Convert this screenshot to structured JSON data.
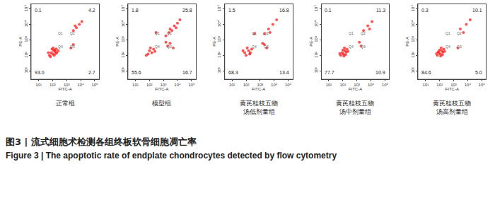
{
  "chart_data": [
    {
      "type": "scatter",
      "title": [
        "正常组"
      ],
      "x_label": "FITC-A",
      "y_label": "PE-A",
      "log": true,
      "grid": false,
      "color": "#ff1a1a",
      "xlim": [
        3,
        200000
      ],
      "ylim": [
        3,
        200000
      ],
      "xticks": [
        {
          "value": 10,
          "label": "10¹"
        },
        {
          "value": 100,
          "label": "10²"
        },
        {
          "value": 1000,
          "label": "10³"
        },
        {
          "value": 10000,
          "label": "10⁴"
        },
        {
          "value": 100000,
          "label": "10⁵"
        }
      ],
      "yticks": [
        {
          "value": 10,
          "label": "10¹"
        },
        {
          "value": 100,
          "label": "10²"
        },
        {
          "value": 1000,
          "label": "10³"
        },
        {
          "value": 10000,
          "label": "10⁴"
        },
        {
          "value": 100000,
          "label": "10⁵"
        }
      ],
      "gates": {
        "x": 1000,
        "y": 1000
      },
      "quadrants": {
        "names": [
          "Q1",
          "Q2",
          "Q3",
          "Q4"
        ],
        "values": [
          0.1,
          4.2,
          2.7,
          93.0
        ],
        "value_labels": [
          "0.1",
          "4.2",
          "2.7",
          "93.0"
        ]
      },
      "points": {
        "x": [
          60,
          80,
          100,
          120,
          150,
          90,
          200,
          70,
          130,
          110,
          180,
          250,
          50,
          160,
          140,
          3000,
          5000,
          8000,
          4000,
          12000,
          2000,
          3000
        ],
        "y": [
          100,
          150,
          120,
          200,
          180,
          250,
          150,
          80,
          100,
          300,
          260,
          200,
          150,
          130,
          220,
          4000,
          6000,
          10000,
          8000,
          15000,
          300,
          500
        ]
      }
    },
    {
      "type": "scatter",
      "title": [
        "模型组"
      ],
      "x_label": "FITC-A",
      "y_label": "PE-A",
      "log": true,
      "grid": false,
      "color": "#ff1a1a",
      "xlim": [
        3,
        200000
      ],
      "ylim": [
        3,
        200000
      ],
      "xticks": [
        {
          "value": 10,
          "label": "10¹"
        },
        {
          "value": 100,
          "label": "10²"
        },
        {
          "value": 1000,
          "label": "10³"
        },
        {
          "value": 10000,
          "label": "10⁴"
        },
        {
          "value": 100000,
          "label": "10⁵"
        }
      ],
      "yticks": [
        {
          "value": 10,
          "label": "10¹"
        },
        {
          "value": 100,
          "label": "10²"
        },
        {
          "value": 1000,
          "label": "10³"
        },
        {
          "value": 10000,
          "label": "10⁴"
        },
        {
          "value": 100000,
          "label": "10⁵"
        }
      ],
      "gates": {
        "x": 1000,
        "y": 1000
      },
      "quadrants": {
        "names": [
          "Q1",
          "Q2",
          "Q3",
          "Q4"
        ],
        "values": [
          1.8,
          25.8,
          16.7,
          55.6
        ],
        "value_labels": [
          "1.8",
          "25.8",
          "16.7",
          "55.6"
        ]
      },
      "points": {
        "x": [
          80,
          100,
          150,
          120,
          200,
          60,
          250,
          1500,
          2500,
          4000,
          6000,
          10000,
          15000,
          3000,
          8000,
          2000,
          3000,
          5000,
          1500,
          300
        ],
        "y": [
          120,
          200,
          150,
          300,
          250,
          100,
          180,
          1800,
          3000,
          4000,
          8000,
          12000,
          20000,
          5000,
          6000,
          400,
          600,
          300,
          700,
          3000
        ]
      }
    },
    {
      "type": "scatter",
      "title": [
        "黄芪桂枝五物",
        "汤低剂量组"
      ],
      "x_label": "FITC-A",
      "y_label": "PE-A",
      "log": true,
      "grid": false,
      "color": "#ff1a1a",
      "xlim": [
        3,
        200000
      ],
      "ylim": [
        3,
        200000
      ],
      "xticks": [
        {
          "value": 10,
          "label": "10¹"
        },
        {
          "value": 100,
          "label": "10²"
        },
        {
          "value": 1000,
          "label": "10³"
        },
        {
          "value": 10000,
          "label": "10⁴"
        },
        {
          "value": 100000,
          "label": "10⁵"
        }
      ],
      "yticks": [
        {
          "value": 10,
          "label": "10¹"
        },
        {
          "value": 100,
          "label": "10²"
        },
        {
          "value": 1000,
          "label": "10³"
        },
        {
          "value": 10000,
          "label": "10⁴"
        },
        {
          "value": 100000,
          "label": "10⁵"
        }
      ],
      "gates": {
        "x": 1000,
        "y": 1000
      },
      "quadrants": {
        "names": [
          "Q1",
          "Q2",
          "Q3",
          "Q4"
        ],
        "values": [
          1.5,
          16.8,
          13.4,
          68.3
        ],
        "value_labels": [
          "1.5",
          "16.8",
          "13.4",
          "68.3"
        ]
      },
      "points": {
        "x": [
          80,
          100,
          150,
          120,
          200,
          60,
          250,
          180,
          2000,
          4000,
          8000,
          15000,
          5000,
          2000,
          3000,
          1500,
          400
        ],
        "y": [
          150,
          100,
          200,
          300,
          150,
          200,
          250,
          120,
          2500,
          5000,
          10000,
          20000,
          3000,
          500,
          300,
          600,
          2500
        ]
      }
    },
    {
      "type": "scatter",
      "title": [
        "黄芪桂枝五物",
        "汤中剂量组"
      ],
      "x_label": "FITC-A",
      "y_label": "PE-A",
      "log": true,
      "grid": false,
      "color": "#ff1a1a",
      "xlim": [
        3,
        200000
      ],
      "ylim": [
        3,
        200000
      ],
      "xticks": [
        {
          "value": 10,
          "label": "10¹"
        },
        {
          "value": 100,
          "label": "10²"
        },
        {
          "value": 1000,
          "label": "10³"
        },
        {
          "value": 10000,
          "label": "10⁴"
        },
        {
          "value": 100000,
          "label": "10⁵"
        }
      ],
      "yticks": [
        {
          "value": 10,
          "label": "10¹"
        },
        {
          "value": 100,
          "label": "10²"
        },
        {
          "value": 1000,
          "label": "10³"
        },
        {
          "value": 10000,
          "label": "10⁴"
        },
        {
          "value": 100000,
          "label": "10⁵"
        }
      ],
      "gates": {
        "x": 1000,
        "y": 1000
      },
      "quadrants": {
        "names": [
          "Q1",
          "Q2",
          "Q3",
          "Q4"
        ],
        "values": [
          0.1,
          11.3,
          10.9,
          77.7
        ],
        "value_labels": [
          "0.1",
          "11.3",
          "10.9",
          "77.7"
        ]
      },
      "points": {
        "x": [
          70,
          90,
          110,
          140,
          170,
          200,
          60,
          130,
          100,
          160,
          230,
          120,
          3000,
          6000,
          12000,
          8000,
          2000,
          1500
        ],
        "y": [
          100,
          150,
          120,
          200,
          160,
          250,
          130,
          300,
          220,
          110,
          180,
          90,
          4000,
          8000,
          15000,
          5000,
          400,
          700
        ]
      }
    },
    {
      "type": "scatter",
      "title": [
        "黄芪桂枝五物",
        "汤高剂量组"
      ],
      "x_label": "FITC-A",
      "y_label": "PE-A",
      "log": true,
      "grid": false,
      "color": "#ff1a1a",
      "xlim": [
        3,
        200000
      ],
      "ylim": [
        3,
        200000
      ],
      "xticks": [
        {
          "value": 10,
          "label": "10¹"
        },
        {
          "value": 100,
          "label": "10²"
        },
        {
          "value": 1000,
          "label": "10³"
        },
        {
          "value": 10000,
          "label": "10⁴"
        },
        {
          "value": 100000,
          "label": "10⁵"
        }
      ],
      "yticks": [
        {
          "value": 10,
          "label": "10¹"
        },
        {
          "value": 100,
          "label": "10²"
        },
        {
          "value": 1000,
          "label": "10³"
        },
        {
          "value": 10000,
          "label": "10⁴"
        },
        {
          "value": 100000,
          "label": "10⁵"
        }
      ],
      "gates": {
        "x": 1000,
        "y": 1000
      },
      "quadrants": {
        "names": [
          "Q1",
          "Q2",
          "Q3",
          "Q4"
        ],
        "values": [
          0.3,
          10.1,
          5.0,
          84.6
        ],
        "value_labels": [
          "0.3",
          "10.1",
          "5.0",
          "84.6"
        ]
      },
      "points": {
        "x": [
          70,
          90,
          110,
          140,
          170,
          200,
          60,
          130,
          100,
          160,
          230,
          120,
          80,
          3000,
          8000,
          15000,
          5000,
          2000
        ],
        "y": [
          100,
          150,
          120,
          200,
          160,
          250,
          130,
          300,
          220,
          110,
          180,
          90,
          170,
          5000,
          10000,
          20000,
          3000,
          300
        ]
      }
    }
  ],
  "caption": {
    "zh": "图3 | 流式细胞术检测各组终板软骨细胞凋亡率",
    "en": "Figure 3 | The apoptotic rate of endplate chondrocytes detected by flow cytometry"
  }
}
